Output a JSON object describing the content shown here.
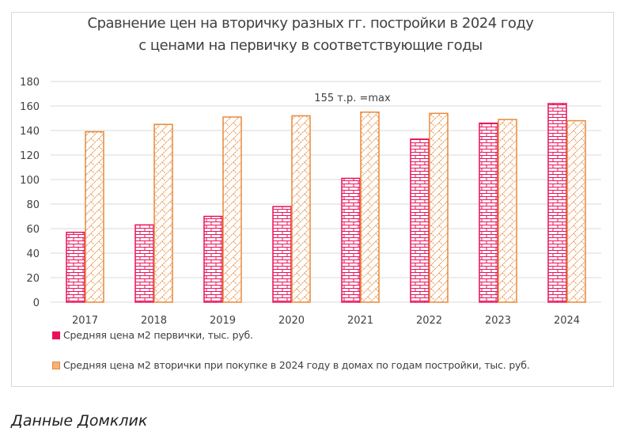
{
  "chart_data": {
    "type": "bar",
    "title": "Сравнение цен на вторичку разных гг. постройки в 2024 году",
    "subtitle": "с ценами на первичку в соответствующие годы",
    "xlabel": "",
    "ylabel": "",
    "ylim": [
      0,
      180
    ],
    "yticks": [
      0,
      20,
      40,
      60,
      80,
      100,
      120,
      140,
      160,
      180
    ],
    "grid": true,
    "legend_position": "bottom-left",
    "categories": [
      "2017",
      "2018",
      "2019",
      "2020",
      "2021",
      "2022",
      "2023",
      "2024"
    ],
    "series": [
      {
        "name": "Средняя цена м2 первички, тыс. руб.",
        "color": "#e8115b",
        "pattern": "brick",
        "values": [
          57,
          63,
          70,
          78,
          101,
          133,
          146,
          162
        ]
      },
      {
        "name": "Средняя цена м2 вторички при покупке в 2024 году в домах по годам постройки, тыс. руб.",
        "color": "#e8893a",
        "pattern": "diagonal-brick",
        "values": [
          139,
          145,
          151,
          152,
          155,
          154,
          149,
          148
        ]
      }
    ],
    "annotations": [
      {
        "text": "155 т.р. =max",
        "category": "2021",
        "value": 155
      }
    ]
  },
  "source_caption": "Данные Домклик"
}
